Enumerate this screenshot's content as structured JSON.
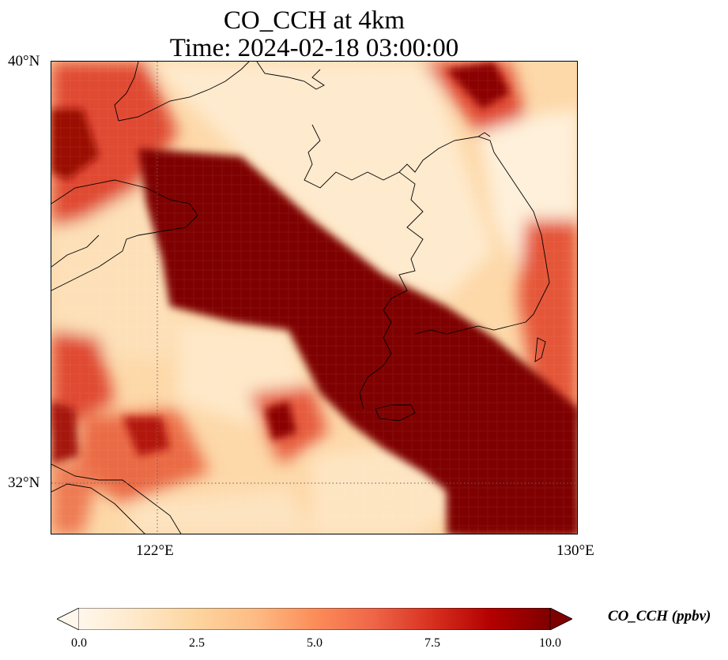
{
  "title": {
    "line1": "CO_CCH at 4km",
    "line2": "Time: 2024-02-18 03:00:00"
  },
  "map": {
    "lon_range": [
      119.5,
      130.0
    ],
    "lat_range": [
      31.0,
      40.0
    ],
    "grid_lines": {
      "lon": [
        122
      ],
      "lat": [
        32
      ]
    },
    "lat_labels": [
      "40°N",
      "32°N"
    ],
    "lon_labels": [
      "122°E",
      "130°E"
    ],
    "field": "CO_CCH",
    "plume_colors": {
      "high": "#7f0000",
      "mid": "#e2452f",
      "low": "#fdd49e",
      "min": "#fff2e0"
    }
  },
  "colorbar": {
    "title": "CO_CCH (ppbv)",
    "min": 0.0,
    "max": 10.0,
    "ticks": [
      "0.0",
      "2.5",
      "5.0",
      "7.5",
      "10.0"
    ],
    "extend": "both",
    "colormap": "OrRd"
  }
}
